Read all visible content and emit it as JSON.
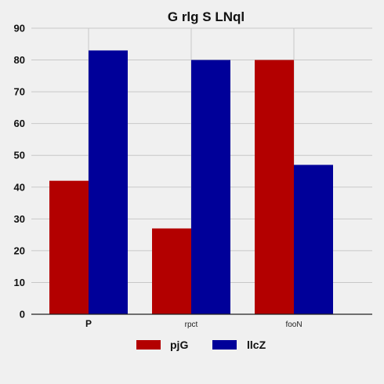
{
  "chart_data": {
    "type": "bar",
    "title": "G rlg S  LNql",
    "categories": [
      "P",
      "rpct",
      "fooN"
    ],
    "category_bold": [
      true,
      false,
      false
    ],
    "series": [
      {
        "name": "pjG",
        "values": [
          42,
          27,
          80
        ],
        "color": "#b30000"
      },
      {
        "name": "llcZ",
        "values": [
          83,
          80,
          47
        ],
        "color": "#000099"
      }
    ],
    "ylim": [
      0,
      90
    ],
    "yticks": [
      0,
      10,
      20,
      30,
      40,
      50,
      60,
      70,
      80,
      90
    ],
    "grid": true,
    "legend": "bottom"
  }
}
